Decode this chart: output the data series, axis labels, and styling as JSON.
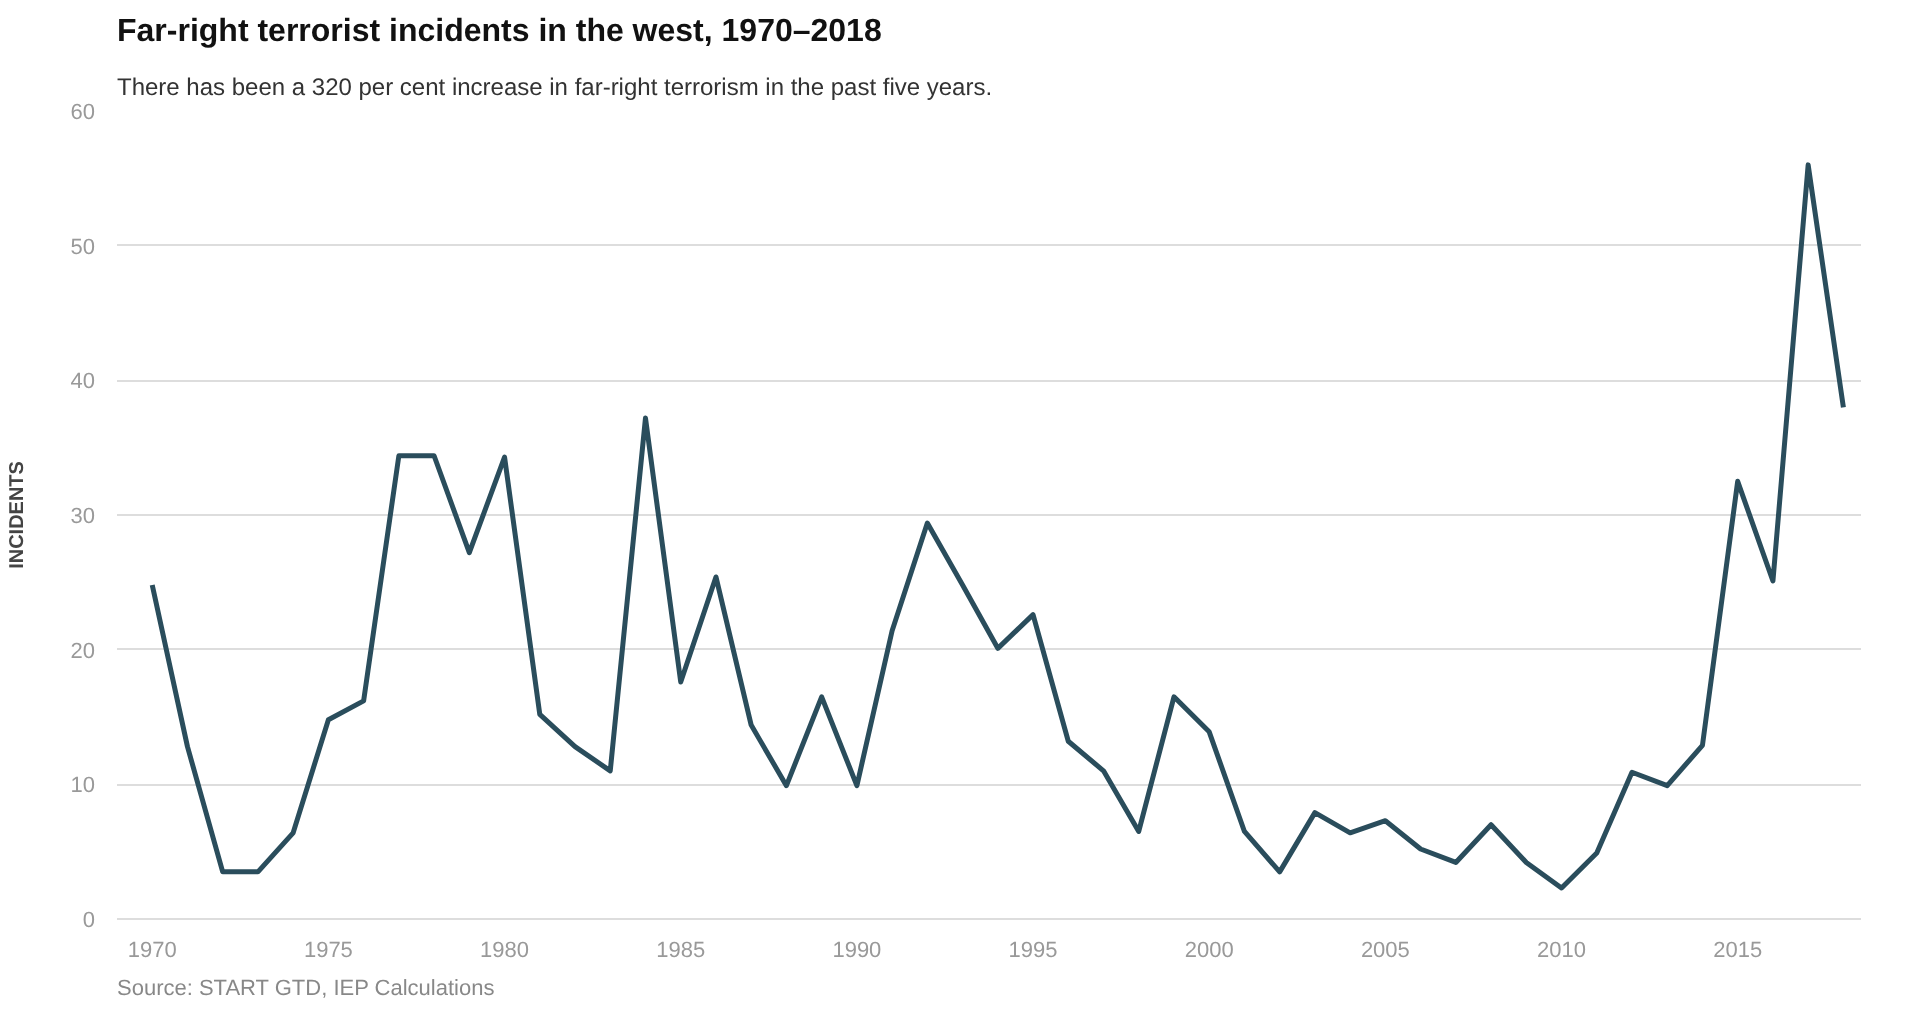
{
  "chart_data": {
    "type": "line",
    "title": "Far-right terrorist incidents in the west, 1970–2018",
    "subtitle": "There has been a 320 per cent increase in far-right terrorism in the past five years.",
    "ylabel": "INCIDENTS",
    "annotations": [
      "Source: START GTD, IEP Calculations"
    ],
    "x": [
      1970,
      1971,
      1972,
      1973,
      1974,
      1975,
      1976,
      1977,
      1978,
      1979,
      1980,
      1981,
      1982,
      1983,
      1984,
      1985,
      1986,
      1987,
      1988,
      1989,
      1990,
      1991,
      1992,
      1993,
      1994,
      1995,
      1996,
      1997,
      1998,
      1999,
      2000,
      2001,
      2002,
      2003,
      2004,
      2005,
      2006,
      2007,
      2008,
      2009,
      2010,
      2011,
      2012,
      2013,
      2014,
      2015,
      2016,
      2017,
      2018
    ],
    "series": [
      {
        "color": "#2a4d5c",
        "values": [
          24.8,
          12.8,
          3.5,
          3.5,
          6.4,
          14.8,
          16.2,
          34.4,
          34.4,
          27.2,
          34.3,
          15.2,
          12.8,
          11.0,
          37.2,
          17.6,
          25.4,
          14.4,
          9.9,
          16.5,
          9.9,
          21.4,
          29.4,
          24.8,
          20.1,
          22.6,
          13.2,
          11.0,
          6.5,
          16.5,
          13.9,
          6.5,
          3.5,
          7.9,
          6.4,
          7.3,
          5.2,
          4.2,
          7.0,
          4.2,
          2.3,
          4.9,
          10.9,
          9.9,
          12.9,
          32.5,
          25.1,
          56.0,
          38.0
        ]
      }
    ],
    "xlim": [
      1969,
      2018.5
    ],
    "ylim": [
      0,
      60
    ],
    "xticks": [
      1970,
      1975,
      1980,
      1985,
      1990,
      1995,
      2000,
      2005,
      2010,
      2015
    ],
    "yticks": [
      0,
      10,
      20,
      30,
      40,
      50,
      60
    ],
    "grid": "y",
    "line_style": "solid",
    "marker": "none"
  }
}
